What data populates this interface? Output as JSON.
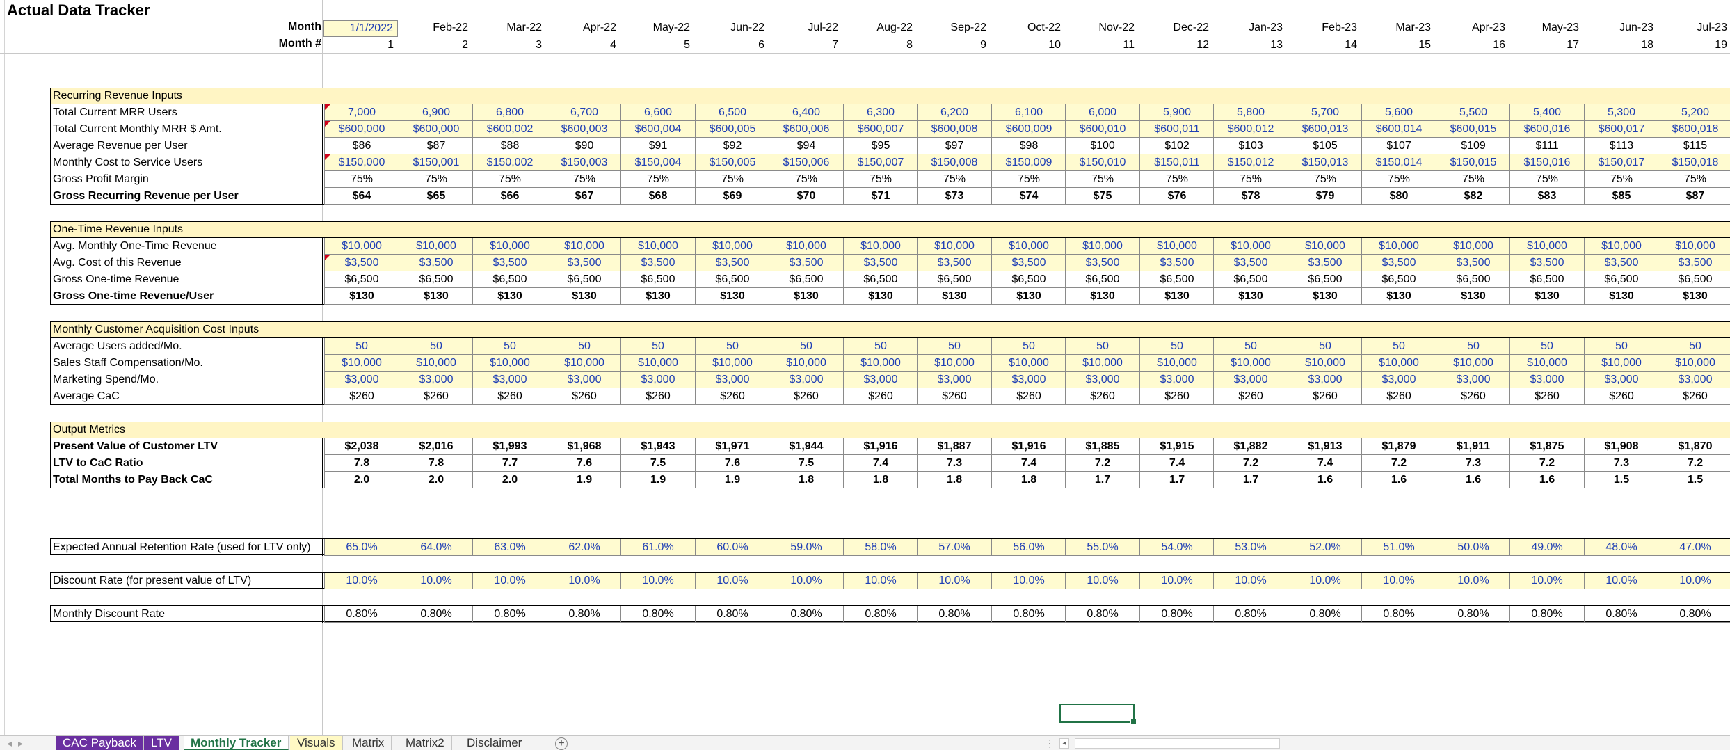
{
  "title": "Actual Data Tracker",
  "header": {
    "month_label": "Month",
    "monthnum_label": "Month #",
    "months": [
      "1/1/2022",
      "Feb-22",
      "Mar-22",
      "Apr-22",
      "May-22",
      "Jun-22",
      "Jul-22",
      "Aug-22",
      "Sep-22",
      "Oct-22",
      "Nov-22",
      "Dec-22",
      "Jan-23",
      "Feb-23",
      "Mar-23",
      "Apr-23",
      "May-23",
      "Jun-23",
      "Jul-23"
    ],
    "month_nums": [
      "1",
      "2",
      "3",
      "4",
      "5",
      "6",
      "7",
      "8",
      "9",
      "10",
      "11",
      "12",
      "13",
      "14",
      "15",
      "16",
      "17",
      "18",
      "19"
    ]
  },
  "sections": [
    {
      "title": "Recurring Revenue Inputs",
      "rows": [
        {
          "label": "Total Current MRR Users",
          "input": true,
          "bold": false,
          "values": [
            "7,000",
            "6,900",
            "6,800",
            "6,700",
            "6,600",
            "6,500",
            "6,400",
            "6,300",
            "6,200",
            "6,100",
            "6,000",
            "5,900",
            "5,800",
            "5,700",
            "5,600",
            "5,500",
            "5,400",
            "5,300",
            "5,200"
          ]
        },
        {
          "label": "Total Current Monthly MRR $ Amt.",
          "input": true,
          "bold": false,
          "values": [
            "$600,000",
            "$600,000",
            "$600,002",
            "$600,003",
            "$600,004",
            "$600,005",
            "$600,006",
            "$600,007",
            "$600,008",
            "$600,009",
            "$600,010",
            "$600,011",
            "$600,012",
            "$600,013",
            "$600,014",
            "$600,015",
            "$600,016",
            "$600,017",
            "$600,018"
          ]
        },
        {
          "label": "Average Revenue per User",
          "input": false,
          "bold": false,
          "values": [
            "$86",
            "$87",
            "$88",
            "$90",
            "$91",
            "$92",
            "$94",
            "$95",
            "$97",
            "$98",
            "$100",
            "$102",
            "$103",
            "$105",
            "$107",
            "$109",
            "$111",
            "$113",
            "$115"
          ]
        },
        {
          "label": "Monthly Cost to Service Users",
          "input": true,
          "bold": false,
          "values": [
            "$150,000",
            "$150,001",
            "$150,002",
            "$150,003",
            "$150,004",
            "$150,005",
            "$150,006",
            "$150,007",
            "$150,008",
            "$150,009",
            "$150,010",
            "$150,011",
            "$150,012",
            "$150,013",
            "$150,014",
            "$150,015",
            "$150,016",
            "$150,017",
            "$150,018"
          ]
        },
        {
          "label": "Gross Profit Margin",
          "input": false,
          "bold": false,
          "values": [
            "75%",
            "75%",
            "75%",
            "75%",
            "75%",
            "75%",
            "75%",
            "75%",
            "75%",
            "75%",
            "75%",
            "75%",
            "75%",
            "75%",
            "75%",
            "75%",
            "75%",
            "75%",
            "75%"
          ]
        },
        {
          "label": "Gross Recurring Revenue per User",
          "input": false,
          "bold": true,
          "values": [
            "$64",
            "$65",
            "$66",
            "$67",
            "$68",
            "$69",
            "$70",
            "$71",
            "$73",
            "$74",
            "$75",
            "$76",
            "$78",
            "$79",
            "$80",
            "$82",
            "$83",
            "$85",
            "$87"
          ]
        }
      ]
    },
    {
      "title": "One-Time Revenue Inputs",
      "rows": [
        {
          "label": "Avg. Monthly One-Time Revenue",
          "input": true,
          "bold": false,
          "values": [
            "$10,000",
            "$10,000",
            "$10,000",
            "$10,000",
            "$10,000",
            "$10,000",
            "$10,000",
            "$10,000",
            "$10,000",
            "$10,000",
            "$10,000",
            "$10,000",
            "$10,000",
            "$10,000",
            "$10,000",
            "$10,000",
            "$10,000",
            "$10,000",
            "$10,000"
          ]
        },
        {
          "label": "Avg. Cost of this Revenue",
          "input": true,
          "bold": false,
          "values": [
            "$3,500",
            "$3,500",
            "$3,500",
            "$3,500",
            "$3,500",
            "$3,500",
            "$3,500",
            "$3,500",
            "$3,500",
            "$3,500",
            "$3,500",
            "$3,500",
            "$3,500",
            "$3,500",
            "$3,500",
            "$3,500",
            "$3,500",
            "$3,500",
            "$3,500"
          ]
        },
        {
          "label": "Gross One-time Revenue",
          "input": false,
          "bold": false,
          "values": [
            "$6,500",
            "$6,500",
            "$6,500",
            "$6,500",
            "$6,500",
            "$6,500",
            "$6,500",
            "$6,500",
            "$6,500",
            "$6,500",
            "$6,500",
            "$6,500",
            "$6,500",
            "$6,500",
            "$6,500",
            "$6,500",
            "$6,500",
            "$6,500",
            "$6,500"
          ]
        },
        {
          "label": "Gross One-time Revenue/User",
          "input": false,
          "bold": true,
          "values": [
            "$130",
            "$130",
            "$130",
            "$130",
            "$130",
            "$130",
            "$130",
            "$130",
            "$130",
            "$130",
            "$130",
            "$130",
            "$130",
            "$130",
            "$130",
            "$130",
            "$130",
            "$130",
            "$130"
          ]
        }
      ]
    },
    {
      "title": "Monthly Customer Acquisition Cost Inputs",
      "rows": [
        {
          "label": "Average Users added/Mo.",
          "input": true,
          "bold": false,
          "values": [
            "50",
            "50",
            "50",
            "50",
            "50",
            "50",
            "50",
            "50",
            "50",
            "50",
            "50",
            "50",
            "50",
            "50",
            "50",
            "50",
            "50",
            "50",
            "50"
          ]
        },
        {
          "label": "Sales Staff Compensation/Mo.",
          "input": true,
          "bold": false,
          "values": [
            "$10,000",
            "$10,000",
            "$10,000",
            "$10,000",
            "$10,000",
            "$10,000",
            "$10,000",
            "$10,000",
            "$10,000",
            "$10,000",
            "$10,000",
            "$10,000",
            "$10,000",
            "$10,000",
            "$10,000",
            "$10,000",
            "$10,000",
            "$10,000",
            "$10,000"
          ]
        },
        {
          "label": "Marketing Spend/Mo.",
          "input": true,
          "bold": false,
          "values": [
            "$3,000",
            "$3,000",
            "$3,000",
            "$3,000",
            "$3,000",
            "$3,000",
            "$3,000",
            "$3,000",
            "$3,000",
            "$3,000",
            "$3,000",
            "$3,000",
            "$3,000",
            "$3,000",
            "$3,000",
            "$3,000",
            "$3,000",
            "$3,000",
            "$3,000"
          ]
        },
        {
          "label": "Average CaC",
          "input": false,
          "bold": false,
          "values": [
            "$260",
            "$260",
            "$260",
            "$260",
            "$260",
            "$260",
            "$260",
            "$260",
            "$260",
            "$260",
            "$260",
            "$260",
            "$260",
            "$260",
            "$260",
            "$260",
            "$260",
            "$260",
            "$260"
          ]
        }
      ]
    },
    {
      "title": "Output Metrics",
      "rows": [
        {
          "label": "Present Value of Customer LTV",
          "input": false,
          "bold": true,
          "values": [
            "$2,038",
            "$2,016",
            "$1,993",
            "$1,968",
            "$1,943",
            "$1,971",
            "$1,944",
            "$1,916",
            "$1,887",
            "$1,916",
            "$1,885",
            "$1,915",
            "$1,882",
            "$1,913",
            "$1,879",
            "$1,911",
            "$1,875",
            "$1,908",
            "$1,870"
          ]
        },
        {
          "label": "LTV to CaC Ratio",
          "input": false,
          "bold": true,
          "values": [
            "7.8",
            "7.8",
            "7.7",
            "7.6",
            "7.5",
            "7.6",
            "7.5",
            "7.4",
            "7.3",
            "7.4",
            "7.2",
            "7.4",
            "7.2",
            "7.4",
            "7.2",
            "7.3",
            "7.2",
            "7.3",
            "7.2"
          ]
        },
        {
          "label": "Total Months to Pay Back CaC",
          "input": false,
          "bold": true,
          "values": [
            "2.0",
            "2.0",
            "2.0",
            "1.9",
            "1.9",
            "1.9",
            "1.8",
            "1.8",
            "1.8",
            "1.8",
            "1.7",
            "1.7",
            "1.7",
            "1.6",
            "1.6",
            "1.6",
            "1.6",
            "1.5",
            "1.5"
          ]
        }
      ]
    }
  ],
  "single_rows": [
    {
      "label": "Expected Annual Retention Rate (used for LTV only)",
      "input": true,
      "values": [
        "65.0%",
        "64.0%",
        "63.0%",
        "62.0%",
        "61.0%",
        "60.0%",
        "59.0%",
        "58.0%",
        "57.0%",
        "56.0%",
        "55.0%",
        "54.0%",
        "53.0%",
        "52.0%",
        "51.0%",
        "50.0%",
        "49.0%",
        "48.0%",
        "47.0%"
      ]
    },
    {
      "label": "Discount Rate (for present value of LTV)",
      "input": true,
      "values": [
        "10.0%",
        "10.0%",
        "10.0%",
        "10.0%",
        "10.0%",
        "10.0%",
        "10.0%",
        "10.0%",
        "10.0%",
        "10.0%",
        "10.0%",
        "10.0%",
        "10.0%",
        "10.0%",
        "10.0%",
        "10.0%",
        "10.0%",
        "10.0%",
        "10.0%"
      ]
    },
    {
      "label": "Monthly Discount Rate",
      "input": false,
      "values": [
        "0.80%",
        "0.80%",
        "0.80%",
        "0.80%",
        "0.80%",
        "0.80%",
        "0.80%",
        "0.80%",
        "0.80%",
        "0.80%",
        "0.80%",
        "0.80%",
        "0.80%",
        "0.80%",
        "0.80%",
        "0.80%",
        "0.80%",
        "0.80%",
        "0.80%"
      ]
    }
  ],
  "tabs": [
    {
      "label": "CAC Payback",
      "style": "purple"
    },
    {
      "label": "LTV",
      "style": "purple"
    },
    {
      "label": "Monthly Tracker",
      "style": "active"
    },
    {
      "label": "Visuals",
      "style": "yellow"
    },
    {
      "label": "Matrix",
      "style": "plain"
    },
    {
      "label": "Matrix2",
      "style": "plain"
    },
    {
      "label": "Disclaimer",
      "style": "plain"
    }
  ],
  "colors": {
    "input_fill": "#fffbd0",
    "input_text": "#1f3fb5",
    "section_fill": "#fff5c4",
    "excel_green": "#217346",
    "tab_purple": "#6a2fa0",
    "comment_marker": "#d0021b"
  },
  "icons": {
    "add_sheet": "plus-circle-icon",
    "comment": "comment-marker-icon"
  }
}
